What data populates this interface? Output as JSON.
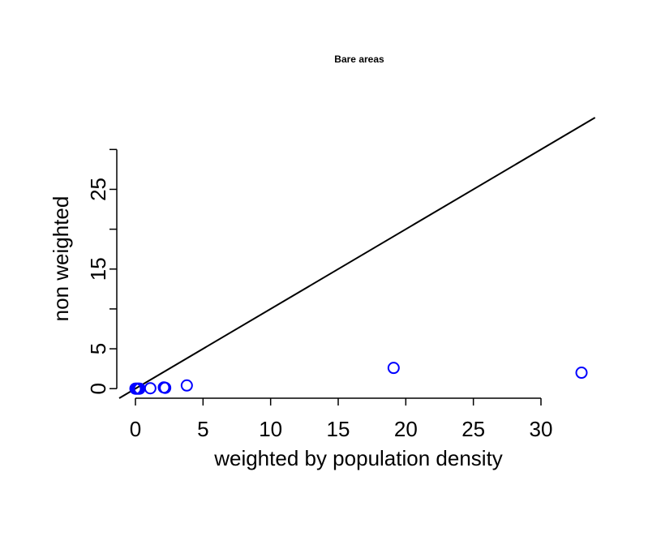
{
  "chart_data": {
    "type": "scatter",
    "title": "Bare areas",
    "xlabel": "weighted by population density",
    "ylabel": "non weighted",
    "xlim": [
      -1.2,
      34.5
    ],
    "ylim": [
      -1.2,
      34.0
    ],
    "x_ticks": [
      0,
      5,
      10,
      15,
      20,
      25,
      30
    ],
    "x_tick_labels": [
      "0",
      "5",
      "10",
      "15",
      "20",
      "25",
      "30"
    ],
    "x_axis_extent": [
      0,
      30
    ],
    "y_ticks": [
      0,
      5,
      10,
      15,
      20,
      25,
      30
    ],
    "y_tick_labels": [
      "0",
      "5",
      "",
      "15",
      "",
      "25",
      ""
    ],
    "y_axis_extent": [
      0,
      30
    ],
    "reference_line": {
      "intercept": 0,
      "slope": 1
    },
    "point_color": "#0000ff",
    "line_color": "#000000",
    "grid": false,
    "legend": "none",
    "series": [
      {
        "points": [
          {
            "x": 0.0,
            "y": 0.0
          },
          {
            "x": 0.1,
            "y": 0.0
          },
          {
            "x": 0.2,
            "y": 0.0
          },
          {
            "x": 0.3,
            "y": 0.0
          },
          {
            "x": 1.1,
            "y": 0.05
          },
          {
            "x": 2.1,
            "y": 0.15
          },
          {
            "x": 2.2,
            "y": 0.1
          },
          {
            "x": 3.8,
            "y": 0.4
          },
          {
            "x": 19.1,
            "y": 2.6
          },
          {
            "x": 33.0,
            "y": 2.0
          }
        ]
      }
    ]
  }
}
